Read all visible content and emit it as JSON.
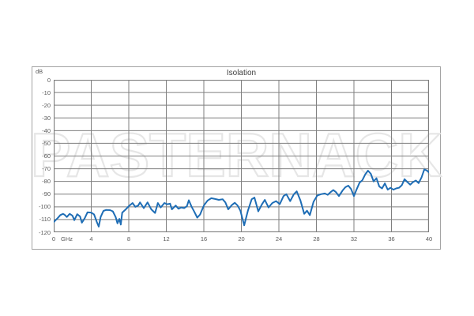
{
  "chart": {
    "title": "Isolation",
    "y_unit_label": "dB",
    "x_unit_label": "GHz",
    "watermark_text": "PASTERNACK",
    "colors": {
      "line": "#1e6db5",
      "grid": "#7f7f7f",
      "plot_border": "#7f7f7f",
      "box_border": "#a3a3a3",
      "tick_label": "#595959",
      "title": "#3f3f3f",
      "watermark_stroke": "#e6e6e6",
      "background": "#ffffff"
    }
  },
  "chart_data": {
    "type": "line",
    "title": "Isolation",
    "xlabel": "GHz",
    "ylabel": "dB",
    "xlim": [
      0,
      40
    ],
    "ylim": [
      -120,
      0
    ],
    "x_ticks": [
      0,
      4,
      8,
      12,
      16,
      20,
      24,
      28,
      32,
      36,
      40
    ],
    "y_ticks": [
      0,
      -10,
      -20,
      -30,
      -40,
      -50,
      -60,
      -70,
      -80,
      -90,
      -100,
      -110,
      -120
    ],
    "grid": true,
    "legend": "none",
    "series": [
      {
        "name": "Isolation",
        "x": [
          0,
          0.4,
          0.7,
          1.0,
          1.2,
          1.4,
          1.7,
          2.0,
          2.2,
          2.5,
          2.8,
          3.0,
          3.3,
          3.6,
          4.0,
          4.3,
          4.6,
          4.8,
          5.0,
          5.3,
          5.6,
          6.0,
          6.3,
          6.6,
          6.8,
          7.0,
          7.15,
          7.3,
          7.6,
          8.0,
          8.4,
          8.7,
          9.0,
          9.2,
          9.6,
          10.0,
          10.4,
          10.8,
          11.1,
          11.4,
          11.8,
          12.1,
          12.4,
          12.6,
          13.0,
          13.3,
          13.6,
          13.9,
          14.2,
          14.4,
          14.7,
          15.0,
          15.3,
          15.6,
          16.0,
          16.4,
          16.8,
          17.2,
          17.6,
          18.0,
          18.3,
          18.6,
          19.0,
          19.3,
          19.6,
          19.9,
          20.3,
          20.7,
          21.1,
          21.4,
          21.8,
          22.2,
          22.5,
          22.9,
          23.3,
          23.7,
          24.1,
          24.5,
          24.8,
          25.2,
          25.6,
          25.9,
          26.3,
          26.7,
          27.0,
          27.3,
          27.7,
          28.1,
          28.5,
          28.9,
          29.2,
          29.5,
          29.8,
          30.1,
          30.4,
          30.8,
          31.1,
          31.4,
          31.7,
          32.0,
          32.3,
          32.6,
          32.9,
          33.2,
          33.5,
          33.8,
          34.1,
          34.4,
          34.7,
          35.0,
          35.3,
          35.6,
          35.9,
          36.2,
          36.5,
          36.8,
          37.1,
          37.4,
          37.7,
          38.0,
          38.3,
          38.6,
          38.9,
          39.2,
          39.5,
          39.8,
          40.0
        ],
        "y": [
          -112,
          -109,
          -106.5,
          -105.5,
          -106.5,
          -108,
          -105.5,
          -107,
          -110.5,
          -105.8,
          -107.5,
          -112.5,
          -109,
          -104.3,
          -104.5,
          -106,
          -112,
          -115.5,
          -108,
          -103.2,
          -102.4,
          -102.6,
          -103.5,
          -108,
          -113,
          -109.5,
          -114,
          -104.5,
          -102.5,
          -99.5,
          -97,
          -100,
          -99,
          -96.5,
          -101,
          -96.5,
          -102,
          -104.8,
          -97,
          -100.5,
          -97,
          -98,
          -97.5,
          -102,
          -99,
          -101.5,
          -100.5,
          -101,
          -99.5,
          -94.8,
          -100,
          -104,
          -108.5,
          -106,
          -99,
          -95,
          -93.2,
          -93.8,
          -94.5,
          -94,
          -96.5,
          -102,
          -98.5,
          -96.8,
          -99,
          -103,
          -114.5,
          -103,
          -94,
          -92.7,
          -103.5,
          -98,
          -94.5,
          -100.5,
          -97,
          -95.5,
          -97.8,
          -91.5,
          -90,
          -95.5,
          -90,
          -87.8,
          -95,
          -105.5,
          -103,
          -106.5,
          -96,
          -91,
          -90,
          -89.5,
          -90.5,
          -88.5,
          -86.8,
          -88.5,
          -91.5,
          -87,
          -84.5,
          -83.3,
          -86,
          -91.5,
          -86,
          -81,
          -79,
          -74.5,
          -71.5,
          -74,
          -80,
          -77.5,
          -84,
          -85.5,
          -81.5,
          -86.5,
          -85,
          -86.5,
          -85.5,
          -85,
          -83,
          -78.2,
          -80.5,
          -82.5,
          -80.5,
          -79.3,
          -81.3,
          -77,
          -70.5,
          -71.5,
          -72.8
        ]
      }
    ]
  }
}
